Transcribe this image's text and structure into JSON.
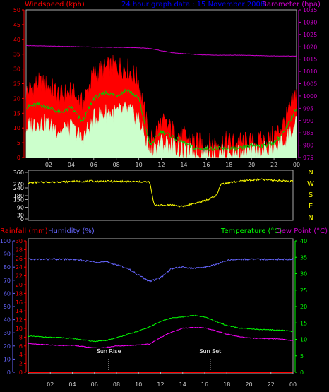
{
  "header": {
    "left_label": "Windspeed (kph)",
    "title": "24 hour graph data : 15 November 2008",
    "right_label": "Barometer (hpa)"
  },
  "middle_panel": {
    "compass_labels": [
      "N",
      "W",
      "S",
      "E",
      "N"
    ]
  },
  "lower_panel": {
    "rainfall_label": "Rainfall (mm)",
    "humidity_label": "Humidity (%)",
    "temperature_label": "Temperature (°C)",
    "dewpoint_label": "Dew Point (°C)",
    "sunrise_label": "Sun Rise",
    "sunset_label": "Sun Set"
  },
  "colors": {
    "windspeed": "#ff0000",
    "gust_avg": "#00cc00",
    "wind_min": "#ccffcc",
    "barometer": "#cc00cc",
    "direction": "#ffff00",
    "humidity": "#6666ff",
    "temperature": "#00ff00",
    "dewpoint": "#ff00ff",
    "rainfall": "#ff0000",
    "title": "#0000ff"
  },
  "chart_data": [
    {
      "type": "area",
      "title": "24 hour graph data : 15 November 2008",
      "x_ticks": [
        "02",
        "04",
        "06",
        "08",
        "10",
        "12",
        "14",
        "16",
        "18",
        "20",
        "22",
        "00"
      ],
      "ylabel_left": "Windspeed (kph)",
      "ylim_left": [
        0,
        50
      ],
      "y_ticks_left": [
        0,
        5,
        10,
        15,
        20,
        25,
        30,
        35,
        40,
        45,
        50
      ],
      "ylabel_right": "Barometer (hpa)",
      "ylim_right": [
        975,
        1035
      ],
      "y_ticks_right": [
        975,
        980,
        985,
        990,
        995,
        1000,
        1005,
        1010,
        1015,
        1020,
        1025,
        1030,
        1035
      ],
      "hours": [
        0,
        1,
        2,
        3,
        4,
        5,
        6,
        7,
        8,
        9,
        10,
        11,
        12,
        13,
        14,
        15,
        16,
        17,
        18,
        19,
        20,
        21,
        22,
        23,
        24
      ],
      "series": [
        {
          "name": "Windspeed (kph)",
          "axis": "left",
          "values": [
            22,
            25,
            24,
            21,
            22,
            18,
            28,
            30,
            31,
            30,
            26,
            5,
            12,
            9,
            7,
            5,
            4,
            5,
            5,
            5,
            5,
            5,
            7,
            12,
            22
          ]
        },
        {
          "name": "",
          "axis": "left",
          "values": [
            17,
            18,
            17,
            15,
            17,
            12,
            20,
            22,
            21,
            23,
            20,
            4,
            9,
            7,
            5,
            3,
            3,
            3,
            3,
            3,
            4,
            4,
            5,
            9,
            17
          ]
        },
        {
          "name": "",
          "axis": "left",
          "values": [
            10,
            12,
            11,
            9,
            10,
            6,
            13,
            15,
            15,
            16,
            13,
            2,
            5,
            4,
            2,
            1,
            1,
            1,
            1,
            1,
            2,
            2,
            3,
            6,
            11
          ]
        },
        {
          "name": "Barometer (hpa)",
          "axis": "right",
          "values": [
            1020.5,
            1020.4,
            1020.3,
            1020.2,
            1020.1,
            1020,
            1019.9,
            1019.8,
            1019.8,
            1019.7,
            1019.6,
            1019.3,
            1018.4,
            1017.6,
            1017.2,
            1016.9,
            1016.7,
            1016.6,
            1016.6,
            1016.6,
            1016.5,
            1016.4,
            1016.3,
            1016.3,
            1016.2
          ]
        }
      ]
    },
    {
      "type": "line",
      "x_ticks": [
        "02",
        "04",
        "06",
        "08",
        "10",
        "12",
        "14",
        "16",
        "18",
        "20",
        "22",
        "00"
      ],
      "ylim": [
        0,
        360
      ],
      "y_ticks": [
        0,
        30,
        60,
        90,
        120,
        150,
        180,
        210,
        240,
        270,
        300,
        330,
        360
      ],
      "series": [
        {
          "name": "",
          "hours": [
            0,
            2,
            4,
            6,
            8,
            10,
            10.5,
            11,
            11.2,
            11.4,
            12,
            13,
            14,
            15,
            16,
            17,
            17.5,
            18,
            18.5,
            19,
            20,
            21,
            22,
            23,
            24
          ],
          "values": [
            280,
            285,
            290,
            292,
            290,
            288,
            288,
            285,
            200,
            110,
            105,
            110,
            95,
            120,
            140,
            175,
            270,
            280,
            285,
            290,
            300,
            305,
            300,
            295,
            290
          ]
        }
      ]
    },
    {
      "type": "line",
      "x_ticks": [
        "02",
        "04",
        "06",
        "08",
        "10",
        "12",
        "14",
        "16",
        "18",
        "20",
        "22",
        "00"
      ],
      "ylabel_left_1": "Rainfall (mm)",
      "ylim_rainfall": [
        0,
        30
      ],
      "y_ticks_rainfall": [
        0,
        2,
        4,
        6,
        8,
        10,
        12,
        14,
        16,
        18,
        20,
        22,
        24,
        26,
        28,
        30
      ],
      "ylabel_left_2": "Humidity (%)",
      "ylim_humidity": [
        0,
        100
      ],
      "y_ticks_humidity": [
        0,
        10,
        20,
        30,
        40,
        50,
        60,
        70,
        80,
        90,
        100
      ],
      "ylabel_right": "Temperature (°C) Dew Point (°C)",
      "ylim_temperature": [
        0,
        40
      ],
      "y_ticks_temperature": [
        0,
        5,
        10,
        15,
        20,
        25,
        30,
        35,
        40
      ],
      "hours": [
        0,
        1,
        2,
        3,
        4,
        5,
        6,
        7,
        8,
        9,
        10,
        11,
        12,
        13,
        14,
        15,
        16,
        17,
        18,
        19,
        20,
        21,
        22,
        23,
        24
      ],
      "series": [
        {
          "name": "Humidity (%)",
          "axis": "humidity",
          "values": [
            86,
            86,
            86,
            86,
            86,
            85,
            84,
            84,
            82,
            79,
            74,
            69,
            72,
            79,
            80,
            79,
            80,
            82,
            85,
            86,
            86,
            86,
            86,
            86,
            86
          ]
        },
        {
          "name": "Temperature (°C)",
          "axis": "temperature",
          "values": [
            11,
            10.8,
            10.6,
            10.5,
            10.3,
            9.8,
            9.4,
            9.6,
            10.5,
            11.5,
            12.5,
            13.8,
            15.5,
            16.5,
            16.8,
            17.3,
            16.8,
            15.5,
            14.2,
            13.5,
            13.2,
            13,
            12.9,
            12.8,
            12.4
          ]
        },
        {
          "name": "Dew Point (°C)",
          "axis": "temperature",
          "values": [
            8.8,
            8.5,
            8.3,
            8.1,
            8.2,
            7.8,
            7.4,
            7.5,
            8,
            8.1,
            8.3,
            8.6,
            10.6,
            12.2,
            13.4,
            13.6,
            13.5,
            12.6,
            11.6,
            10.9,
            10.4,
            10.3,
            10.2,
            10.1,
            9.6
          ]
        },
        {
          "name": "Rainfall (mm)",
          "axis": "rainfall",
          "values": [
            0,
            0,
            0,
            0,
            0,
            0,
            0,
            0,
            0,
            0,
            0,
            0,
            0,
            0,
            0,
            0,
            0,
            0,
            0,
            0,
            0,
            0,
            0,
            0,
            0
          ]
        }
      ],
      "annotations": [
        {
          "text": "Sun Rise",
          "hour": 7.3
        },
        {
          "text": "Sun Set",
          "hour": 16.5
        }
      ]
    }
  ]
}
